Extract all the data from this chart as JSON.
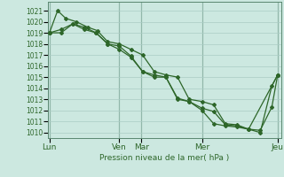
{
  "background_color": "#cce8e0",
  "plot_bg_color": "#cce8e0",
  "grid_color": "#aaccc4",
  "line_color": "#2d6629",
  "marker_color": "#2d6629",
  "vline_color": "#5a8870",
  "title": "Pression niveau de la mer( hPa )",
  "ylabel_ticks": [
    1010,
    1011,
    1012,
    1013,
    1014,
    1015,
    1016,
    1017,
    1018,
    1019,
    1020,
    1021
  ],
  "ylim": [
    1009.5,
    1021.8
  ],
  "xlim": [
    0.0,
    10.0
  ],
  "day_labels": [
    "Lun",
    "Ven",
    "Mar",
    "Mer",
    "Jeu"
  ],
  "day_positions": [
    0.05,
    3.05,
    4.0,
    6.6,
    9.85
  ],
  "vline_positions": [
    0.05,
    3.05,
    4.0,
    6.6,
    9.85
  ],
  "series1": {
    "x": [
      0.05,
      0.4,
      0.75,
      1.2,
      1.7,
      2.1,
      2.55,
      3.05,
      3.55,
      4.05,
      4.55,
      5.05,
      5.55,
      6.05,
      6.6,
      7.1,
      7.6,
      8.1,
      8.6,
      9.1,
      9.6,
      9.85
    ],
    "y": [
      1019.0,
      1021.0,
      1020.3,
      1020.0,
      1019.5,
      1019.2,
      1018.2,
      1018.0,
      1017.5,
      1017.0,
      1015.5,
      1015.2,
      1015.0,
      1013.0,
      1012.8,
      1012.5,
      1010.8,
      1010.7,
      1010.3,
      1010.2,
      1012.3,
      1015.2
    ]
  },
  "series2": {
    "x": [
      0.05,
      0.55,
      1.05,
      1.55,
      2.05,
      2.55,
      3.05,
      3.55,
      4.05,
      4.55,
      5.05,
      5.55,
      6.05,
      6.6,
      7.1,
      7.6,
      8.1,
      8.6,
      9.1,
      9.6,
      9.85
    ],
    "y": [
      1019.0,
      1019.3,
      1019.8,
      1019.5,
      1019.0,
      1018.0,
      1017.8,
      1016.9,
      1015.5,
      1015.2,
      1015.0,
      1013.1,
      1012.8,
      1012.2,
      1011.9,
      1010.7,
      1010.6,
      1010.3,
      1010.0,
      1014.2,
      1015.2
    ]
  },
  "series3": {
    "x": [
      0.05,
      0.55,
      1.05,
      1.55,
      2.05,
      2.55,
      3.05,
      3.55,
      4.05,
      4.55,
      5.05,
      5.55,
      6.05,
      6.6,
      7.1,
      7.6,
      8.1,
      8.6,
      9.85
    ],
    "y": [
      1019.0,
      1019.0,
      1019.8,
      1019.3,
      1019.0,
      1018.0,
      1017.5,
      1016.8,
      1015.5,
      1015.0,
      1015.0,
      1013.0,
      1012.8,
      1012.0,
      1010.8,
      1010.6,
      1010.5,
      1010.3,
      1015.2
    ]
  }
}
